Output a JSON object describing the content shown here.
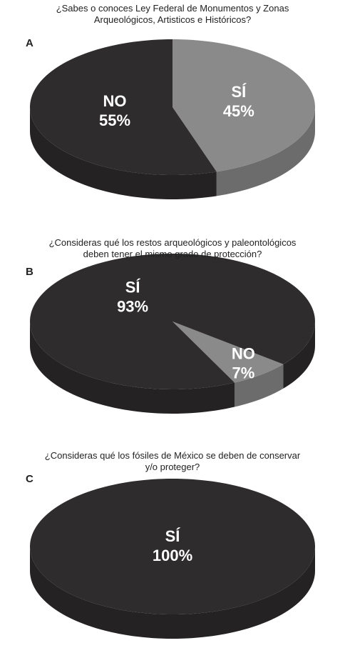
{
  "chart_data": [
    {
      "type": "pie",
      "label": "A",
      "title": "¿Sabes o conoces Ley Federal de Monumentos y Zonas Arqueológicos, Artisticos e Históricos?",
      "categories": [
        "SÍ",
        "NO"
      ],
      "values": [
        45,
        55
      ],
      "value_labels": [
        "45%",
        "55%"
      ],
      "colors": [
        "#8a8a8a",
        "#2e2c2c"
      ]
    },
    {
      "type": "pie",
      "label": "B",
      "title": "¿Consideras qué los restos arqueológicos y paleontológicos deben tener el mismo grado de protección?",
      "categories": [
        "NO",
        "SÍ"
      ],
      "values": [
        7,
        93
      ],
      "value_labels": [
        "7%",
        "93%"
      ],
      "colors": [
        "#8a8a8a",
        "#2e2c2c"
      ]
    },
    {
      "type": "pie",
      "label": "C",
      "title": "¿Consideras qué los fósiles de México se deben de conservar y/o proteger?",
      "categories": [
        "SÍ"
      ],
      "values": [
        100
      ],
      "value_labels": [
        "100%"
      ],
      "colors": [
        "#2e2c2c"
      ]
    }
  ]
}
